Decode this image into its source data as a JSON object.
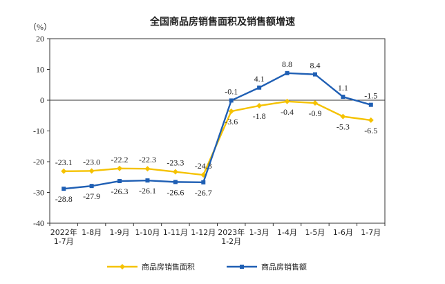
{
  "chart_data": {
    "type": "line",
    "title": "全国商品房销售面积及销售额增速",
    "ylabel": "（%）",
    "ylim": [
      -40,
      20
    ],
    "yticks": [
      20,
      10,
      0,
      -10,
      -20,
      -30,
      -40
    ],
    "grid": false,
    "legend_position": "bottom",
    "categories": [
      [
        "2022年",
        "1-7月"
      ],
      [
        "1-8月"
      ],
      [
        "1-9月"
      ],
      [
        "1-10月"
      ],
      [
        "1-11月"
      ],
      [
        "1-12月"
      ],
      [
        "2023年",
        "1-2月"
      ],
      [
        "1-3月"
      ],
      [
        "1-4月"
      ],
      [
        "1-5月"
      ],
      [
        "1-6月"
      ],
      [
        "1-7月"
      ]
    ],
    "series": [
      {
        "name": "商品房销售面积",
        "color": "#F5C200",
        "marker": "diamond",
        "values": [
          -23.1,
          -23.0,
          -22.2,
          -22.3,
          -23.3,
          -24.3,
          -3.6,
          -1.8,
          -0.4,
          -0.9,
          -5.3,
          -6.5
        ],
        "labels": [
          "-23.1",
          "-23.0",
          "-22.2",
          "-22.3",
          "-23.3",
          "-24.3",
          "-3.6",
          "-1.8",
          "-0.4",
          "-0.9",
          "-5.3",
          "-6.5"
        ]
      },
      {
        "name": "商品房销售额",
        "color": "#1F5FB4",
        "marker": "square",
        "values": [
          -28.8,
          -27.9,
          -26.3,
          -26.1,
          -26.6,
          -26.7,
          -0.1,
          4.1,
          8.8,
          8.4,
          1.1,
          -1.5
        ],
        "labels": [
          "-28.8",
          "-27.9",
          "-26.3",
          "-26.1",
          "-26.6",
          "-26.7",
          "-0.1",
          "4.1",
          "8.8",
          "8.4",
          "1.1",
          "-1.5"
        ]
      }
    ]
  }
}
